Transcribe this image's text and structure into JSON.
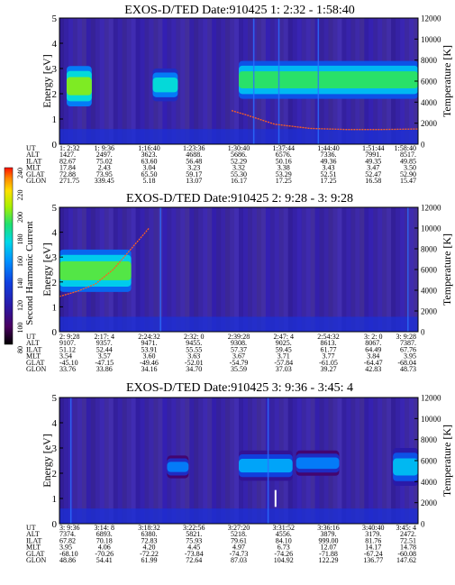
{
  "chart_data": [
    {
      "type": "heatmap",
      "title": "EXOS-D/TED   Date:910425  1: 2:32 - 1:58:40",
      "ylabel": "Energy [eV]",
      "ylabel_right": "Temperature [K]",
      "ylim": [
        0,
        5
      ],
      "ylim_right": [
        0,
        12000
      ],
      "yticks": [
        "0",
        "1",
        "2",
        "3",
        "4",
        "5"
      ],
      "yticks_right": [
        "0",
        "2000",
        "4000",
        "6000",
        "8000",
        "10000",
        "12000"
      ],
      "orbit_labels": [
        "UT",
        "ALT",
        "ILAT",
        "MLT",
        "GLAT",
        "GLON"
      ],
      "orbit_columns": [
        [
          "1: 2:32",
          "1427.",
          "82.67",
          "17.84",
          "72.88",
          "271.75"
        ],
        [
          "1: 9:36",
          "2497.",
          "75.02",
          "2.43",
          "73.95",
          "339.45"
        ],
        [
          "1:16:40",
          "3623.",
          "63.60",
          "3.04",
          "65.50",
          "5.18"
        ],
        [
          "1:23:36",
          "4688.",
          "56.48",
          "3.23",
          "59.17",
          "13.07"
        ],
        [
          "1:30:40",
          "5686.",
          "52.29",
          "3.32",
          "55.30",
          "16.17"
        ],
        [
          "1:37:44",
          "6576.",
          "50.16",
          "3.38",
          "53.29",
          "17.25"
        ],
        [
          "1:44:40",
          "7336.",
          "49.36",
          "3.43",
          "52.51",
          "17.25"
        ],
        [
          "1:51:44",
          "7991.",
          "49.35",
          "3.47",
          "52.47",
          "16.58"
        ],
        [
          "1:58:40",
          "8517.",
          "49.85",
          "3.50",
          "52.90",
          "15.47"
        ]
      ],
      "bands": [
        {
          "x0": 0.02,
          "x1": 0.09,
          "e0": 1.5,
          "e1": 3.1,
          "level": 200
        },
        {
          "x0": 0.26,
          "x1": 0.33,
          "e0": 1.7,
          "e1": 3.0,
          "level": 175
        },
        {
          "x0": 0.5,
          "x1": 1.0,
          "e0": 1.8,
          "e1": 3.3,
          "level": 190
        }
      ],
      "spikes": [
        0.54,
        0.61,
        0.72
      ],
      "temperature": [
        {
          "t": 0.48,
          "T": 3200
        },
        {
          "t": 0.52,
          "T": 2800
        },
        {
          "t": 0.6,
          "T": 1900
        },
        {
          "t": 0.7,
          "T": 1500
        },
        {
          "t": 0.8,
          "T": 1400
        },
        {
          "t": 0.9,
          "T": 1400
        },
        {
          "t": 1.0,
          "T": 1450
        }
      ]
    },
    {
      "type": "heatmap",
      "title": "EXOS-D/TED   Date:910425  2: 9:28 - 3: 9:28",
      "ylabel": "Energy [eV]",
      "ylabel_right": "Temperature [K]",
      "ylim": [
        0,
        5
      ],
      "ylim_right": [
        0,
        12000
      ],
      "yticks": [
        "0",
        "1",
        "2",
        "3",
        "4",
        "5"
      ],
      "yticks_right": [
        "0",
        "2000",
        "4000",
        "6000",
        "8000",
        "10000",
        "12000"
      ],
      "colorbar": {
        "label": "Second Harmonic Current",
        "ticks": [
          "80",
          "100",
          "120",
          "140",
          "160",
          "180",
          "200",
          "220",
          "240"
        ],
        "range": [
          80,
          240
        ]
      },
      "orbit_labels": [
        "UT",
        "ALT",
        "ILAT",
        "MLT",
        "GLAT",
        "GLON"
      ],
      "orbit_columns": [
        [
          "2: 9:28",
          "9107.",
          "51.12",
          "3.54",
          "-45.10",
          "33.76"
        ],
        [
          "2:17: 4",
          "9357.",
          "52.44",
          "3.57",
          "-47.15",
          "33.86"
        ],
        [
          "2:24:32",
          "9471.",
          "53.91",
          "3.60",
          "-49.46",
          "34.16"
        ],
        [
          "2:32: 0",
          "9455.",
          "55.55",
          "3.63",
          "-52.01",
          "34.70"
        ],
        [
          "2:39:28",
          "9308.",
          "57.37",
          "3.67",
          "-54.79",
          "35.59"
        ],
        [
          "2:47: 4",
          "9025.",
          "59.45",
          "3.71",
          "-57.84",
          "37.03"
        ],
        [
          "2:54:32",
          "8613.",
          "61.77",
          "3.77",
          "-61.05",
          "39.27"
        ],
        [
          "3: 2: 0",
          "8067.",
          "64.49",
          "3.84",
          "-64.47",
          "42.83"
        ],
        [
          "3: 9:28",
          "7387.",
          "67.76",
          "3.95",
          "-68.04",
          "48.73"
        ]
      ],
      "bands": [
        {
          "x0": 0.0,
          "x1": 0.2,
          "e0": 1.6,
          "e1": 3.3,
          "level": 195
        }
      ],
      "spikes": [
        0.28,
        0.97
      ],
      "temperature": [
        {
          "t": 0.0,
          "T": 3400
        },
        {
          "t": 0.05,
          "T": 3900
        },
        {
          "t": 0.1,
          "T": 4600
        },
        {
          "t": 0.15,
          "T": 6000
        },
        {
          "t": 0.2,
          "T": 8000
        },
        {
          "t": 0.25,
          "T": 10000
        }
      ]
    },
    {
      "type": "heatmap",
      "title": "EXOS-D/TED   Date:910425  3: 9:36 - 3:45: 4",
      "ylabel": "Energy [eV]",
      "ylabel_right": "Temperature [K]",
      "ylim": [
        0,
        5
      ],
      "ylim_right": [
        0,
        12000
      ],
      "yticks": [
        "0",
        "1",
        "2",
        "3",
        "4",
        "5"
      ],
      "yticks_right": [
        "0",
        "2000",
        "4000",
        "6000",
        "8000",
        "10000",
        "12000"
      ],
      "orbit_labels": [
        "UT",
        "ALT",
        "ILAT",
        "MLT",
        "GLAT",
        "GLON"
      ],
      "orbit_columns": [
        [
          "3: 9:36",
          "7374.",
          "67.82",
          "3.95",
          "-68.10",
          "48.86"
        ],
        [
          "3:14: 8",
          "6893.",
          "70.18",
          "4.06",
          "-70.26",
          "54.41"
        ],
        [
          "3:18:32",
          "6380.",
          "72.83",
          "4.20",
          "-72.22",
          "61.99"
        ],
        [
          "3:22:56",
          "5821.",
          "75.93",
          "4.45",
          "-73.84",
          "72.64"
        ],
        [
          "3:27:20",
          "5218.",
          "79.61",
          "4.97",
          "-74.73",
          "87.03"
        ],
        [
          "3:31:52",
          "4556.",
          "84.10",
          "6.73",
          "-74.26",
          "104.92"
        ],
        [
          "3:36:16",
          "3879.",
          "999.00",
          "12.07",
          "-71.88",
          "122.29"
        ],
        [
          "3:40:40",
          "3179.",
          "81.76",
          "14.17",
          "-67.24",
          "136.77"
        ],
        [
          "3:45: 4",
          "2472.",
          "72.51",
          "14.78",
          "-60.08",
          "147.62"
        ]
      ],
      "bands": [
        {
          "x0": 0.3,
          "x1": 0.36,
          "e0": 1.8,
          "e1": 2.7,
          "level": 150
        },
        {
          "x0": 0.5,
          "x1": 0.65,
          "e0": 1.7,
          "e1": 2.9,
          "level": 160
        },
        {
          "x0": 0.66,
          "x1": 0.78,
          "e0": 1.9,
          "e1": 2.9,
          "level": 150
        },
        {
          "x0": 0.93,
          "x1": 1.0,
          "e0": 1.5,
          "e1": 3.0,
          "level": 165
        }
      ],
      "spikes": [
        0.03,
        0.58
      ],
      "white_marks": [
        {
          "t": 0.6,
          "T": 2400
        }
      ],
      "temperature": []
    }
  ]
}
